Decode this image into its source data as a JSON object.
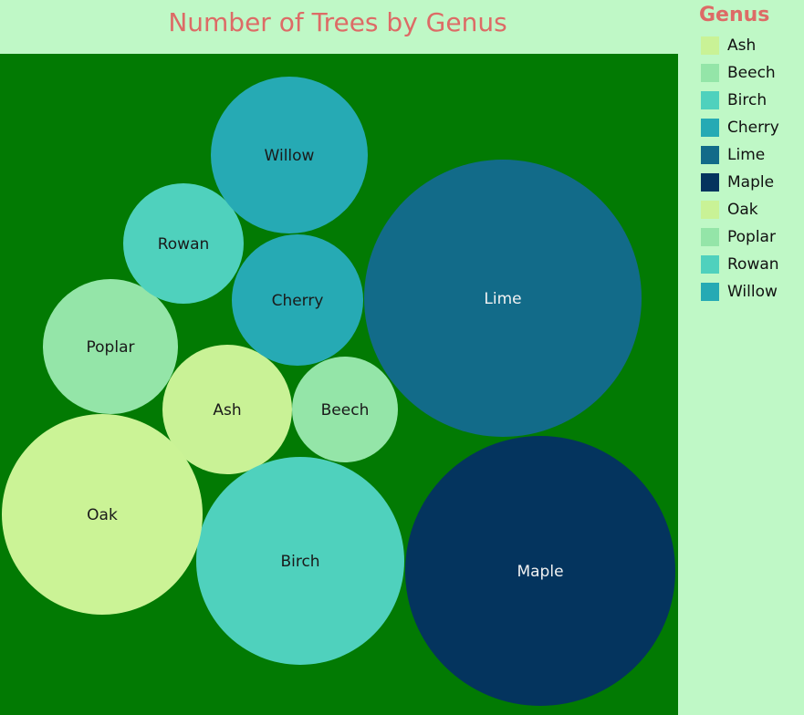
{
  "chart_data": {
    "type": "bubble",
    "title": "Number of Trees by Genus",
    "legend_title": "Genus",
    "legend_position": "right",
    "series": [
      {
        "name": "Ash",
        "relative_size": 0.36,
        "color": "#c9f296"
      },
      {
        "name": "Beech",
        "relative_size": 0.24,
        "color": "#94e5a8"
      },
      {
        "name": "Birch",
        "relative_size": 0.92,
        "color": "#4fd1bd"
      },
      {
        "name": "Cherry",
        "relative_size": 0.37,
        "color": "#26aab4"
      },
      {
        "name": "Lime",
        "relative_size": 1.66,
        "color": "#126b89"
      },
      {
        "name": "Maple",
        "relative_size": 1.56,
        "color": "#04345e"
      },
      {
        "name": "Oak",
        "relative_size": 0.86,
        "color": "#cbf396"
      },
      {
        "name": "Poplar",
        "relative_size": 0.39,
        "color": "#94e5a8"
      },
      {
        "name": "Rowan",
        "relative_size": 0.3,
        "color": "#4fd1bd"
      },
      {
        "name": "Willow",
        "relative_size": 0.51,
        "color": "#26aab4"
      }
    ]
  },
  "legend": {
    "title": "Genus",
    "items": [
      {
        "label": "Ash",
        "color": "#c9f296"
      },
      {
        "label": "Beech",
        "color": "#94e5a8"
      },
      {
        "label": "Birch",
        "color": "#4fd1bd"
      },
      {
        "label": "Cherry",
        "color": "#26aab4"
      },
      {
        "label": "Lime",
        "color": "#126b89"
      },
      {
        "label": "Maple",
        "color": "#04345e"
      },
      {
        "label": "Oak",
        "color": "#c9f296"
      },
      {
        "label": "Poplar",
        "color": "#94e5a8"
      },
      {
        "label": "Rowan",
        "color": "#4fd1bd"
      },
      {
        "label": "Willow",
        "color": "#26aab4"
      }
    ]
  },
  "colors": {
    "page_background": "#bff8c6",
    "plot_background": "#027a03",
    "title_color": "#dd6b66",
    "dark_label": "#1a1a1a",
    "light_label": "#f2f2f2"
  }
}
